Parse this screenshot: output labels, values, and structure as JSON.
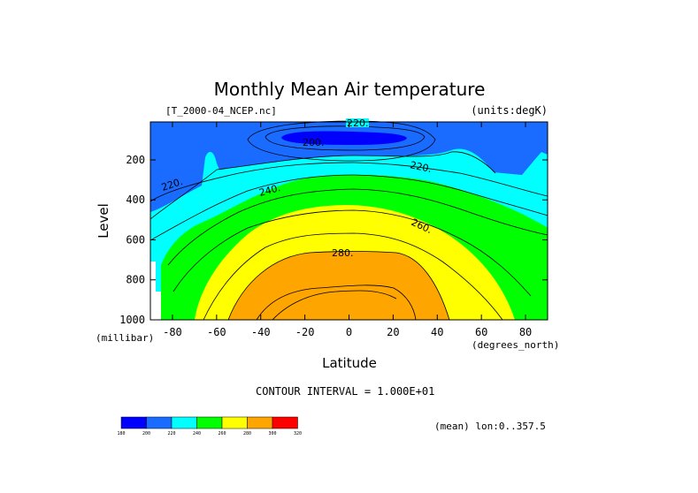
{
  "chart_data": {
    "type": "heatmap",
    "title": "Monthly Mean Air temperature",
    "file_label": "[T_2000-04_NCEP.nc]",
    "units_label": "(units:degK)",
    "xlabel": "Latitude",
    "ylabel": "Level",
    "x_unit_label": "(degrees_north)",
    "y_unit_label": "(millibar)",
    "xlim": [
      -90,
      90
    ],
    "ylim": [
      1000,
      10
    ],
    "x_ticks": [
      -80,
      -60,
      -40,
      -20,
      0,
      20,
      40,
      60,
      80
    ],
    "y_ticks": [
      200,
      400,
      600,
      800,
      1000
    ],
    "contour_interval_text": "CONTOUR INTERVAL = 1.000E+01",
    "mean_text": "(mean) lon:0..357.5",
    "contour_labels": [
      "220.",
      "200.",
      "220.",
      "220.",
      "240.",
      "260.",
      "280."
    ],
    "colorbar": {
      "levels": [
        "180",
        "200",
        "220",
        "240",
        "260",
        "280",
        "300",
        "320"
      ],
      "colors": [
        "#0000ff",
        "#1a6bff",
        "#00ffff",
        "#00ff00",
        "#ffff00",
        "#ffa500",
        "#ff0000"
      ]
    }
  }
}
